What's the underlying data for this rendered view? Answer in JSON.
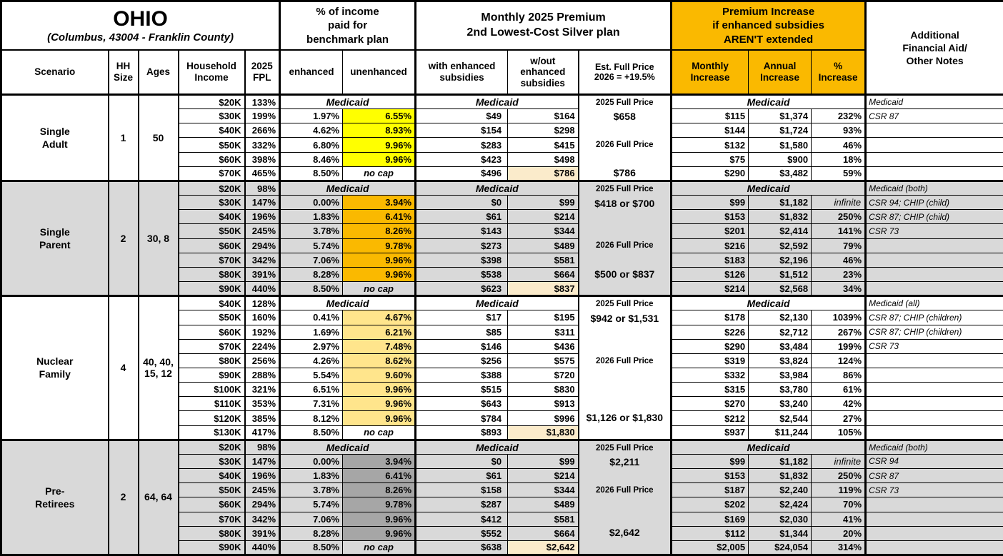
{
  "labels": {
    "ohio": "OHIO",
    "location": "(Columbus, 43004 - Franklin County)",
    "income_pct_header": "% of income\npaid for\nbenchmark plan",
    "premium_header": "Monthly 2025 Premium\n2nd Lowest-Cost Silver plan",
    "increase_header": "Premium Increase\nif enhanced subsidies\nAREN'T extended",
    "notes_header": "Additional\nFinancial Aid/\nOther Notes",
    "col_scenario": "Scenario",
    "col_hh": "HH\nSize",
    "col_ages": "Ages",
    "col_income": "Household\nIncome",
    "col_fpl": "2025\nFPL",
    "col_enh": "enhanced",
    "col_unenh": "unenhanced",
    "col_with": "with enhanced\nsubsidies",
    "col_wout": "w/out\nenhanced\nsubsidies",
    "col_est": "Est. Full Price\n2026 = +19.5%",
    "col_monthly": "Monthly\nIncrease",
    "col_annual": "Annual\nIncrease",
    "col_pct": "%\nIncrease",
    "medicaid": "Medicaid",
    "no_cap": "no cap"
  },
  "colors": {
    "header_gold": "#FAB900",
    "cell_yellow": "#FFFF00",
    "cell_gold": "#FAB900",
    "cell_light_gold": "#FFE58C",
    "cell_dark_gray": "#A6A6A6",
    "section_gray": "#D9D9D9",
    "highlight_cream": "#FBEBCB"
  },
  "sections": [
    {
      "label": "Single\nAdult",
      "hh": "1",
      "ages": "50",
      "shade": "white",
      "fill": "cell_yellow",
      "rows": [
        {
          "income": "$20K",
          "fpl": "133%",
          "type": "medicaid"
        },
        {
          "income": "$30K",
          "fpl": "199%",
          "enh": "1.97%",
          "unenh": "6.55%",
          "with_s": "$49",
          "wout": "$164",
          "monthly": "$115",
          "annual": "$1,374",
          "pct": "232%"
        },
        {
          "income": "$40K",
          "fpl": "266%",
          "enh": "4.62%",
          "unenh": "8.93%",
          "with_s": "$154",
          "wout": "$298",
          "monthly": "$144",
          "annual": "$1,724",
          "pct": "93%"
        },
        {
          "income": "$50K",
          "fpl": "332%",
          "enh": "6.80%",
          "unenh": "9.96%",
          "with_s": "$283",
          "wout": "$415",
          "monthly": "$132",
          "annual": "$1,580",
          "pct": "46%"
        },
        {
          "income": "$60K",
          "fpl": "398%",
          "enh": "8.46%",
          "unenh": "9.96%",
          "with_s": "$423",
          "wout": "$498",
          "monthly": "$75",
          "annual": "$900",
          "pct": "18%"
        },
        {
          "income": "$70K",
          "fpl": "465%",
          "enh": "8.50%",
          "unenh": "no cap",
          "nocap": true,
          "with_s": "$496",
          "wout": "$786",
          "hl": true,
          "monthly": "$290",
          "annual": "$3,482",
          "pct": "59%"
        }
      ],
      "est": [
        {
          "t": "2025 Full Price",
          "k": "label"
        },
        {
          "t": "$658",
          "k": "money"
        },
        {
          "t": ""
        },
        {
          "t": "2026 Full Price",
          "k": "label"
        },
        {
          "t": ""
        },
        {
          "t": "$786",
          "k": "money"
        }
      ],
      "notes": [
        "Medicaid",
        "CSR 87",
        "",
        "",
        "",
        ""
      ]
    },
    {
      "label": "Single\nParent",
      "hh": "2",
      "ages": "30, 8",
      "shade": "gray",
      "fill": "cell_gold",
      "rows": [
        {
          "income": "$20K",
          "fpl": "98%",
          "type": "medicaid"
        },
        {
          "income": "$30K",
          "fpl": "147%",
          "enh": "0.00%",
          "unenh": "3.94%",
          "with_s": "$0",
          "wout": "$99",
          "monthly": "$99",
          "annual": "$1,182",
          "pct": "infinite",
          "pct_italic": true
        },
        {
          "income": "$40K",
          "fpl": "196%",
          "enh": "1.83%",
          "unenh": "6.41%",
          "with_s": "$61",
          "wout": "$214",
          "monthly": "$153",
          "annual": "$1,832",
          "pct": "250%"
        },
        {
          "income": "$50K",
          "fpl": "245%",
          "enh": "3.78%",
          "unenh": "8.26%",
          "with_s": "$143",
          "wout": "$344",
          "monthly": "$201",
          "annual": "$2,414",
          "pct": "141%"
        },
        {
          "income": "$60K",
          "fpl": "294%",
          "enh": "5.74%",
          "unenh": "9.78%",
          "with_s": "$273",
          "wout": "$489",
          "monthly": "$216",
          "annual": "$2,592",
          "pct": "79%"
        },
        {
          "income": "$70K",
          "fpl": "342%",
          "enh": "7.06%",
          "unenh": "9.96%",
          "with_s": "$398",
          "wout": "$581",
          "monthly": "$183",
          "annual": "$2,196",
          "pct": "46%"
        },
        {
          "income": "$80K",
          "fpl": "391%",
          "enh": "8.28%",
          "unenh": "9.96%",
          "with_s": "$538",
          "wout": "$664",
          "monthly": "$126",
          "annual": "$1,512",
          "pct": "23%"
        },
        {
          "income": "$90K",
          "fpl": "440%",
          "enh": "8.50%",
          "unenh": "no cap",
          "nocap": true,
          "with_s": "$623",
          "wout": "$837",
          "hl": true,
          "monthly": "$214",
          "annual": "$2,568",
          "pct": "34%"
        }
      ],
      "est": [
        {
          "t": "2025 Full Price",
          "k": "label"
        },
        {
          "t": "$418 or $700",
          "k": "money"
        },
        {
          "t": ""
        },
        {
          "t": ""
        },
        {
          "t": "2026 Full Price",
          "k": "label"
        },
        {
          "t": ""
        },
        {
          "t": "$500 or $837",
          "k": "money"
        },
        {
          "t": ""
        }
      ],
      "notes": [
        "Medicaid (both)",
        "CSR 94; CHIP (child)",
        "CSR 87; CHIP (child)",
        "CSR 73",
        "",
        "",
        "",
        ""
      ]
    },
    {
      "label": "Nuclear\nFamily",
      "hh": "4",
      "ages": "40, 40,\n15, 12",
      "shade": "white",
      "fill": "cell_light_gold",
      "rows": [
        {
          "income": "$40K",
          "fpl": "128%",
          "type": "medicaid"
        },
        {
          "income": "$50K",
          "fpl": "160%",
          "enh": "0.41%",
          "unenh": "4.67%",
          "with_s": "$17",
          "wout": "$195",
          "monthly": "$178",
          "annual": "$2,130",
          "pct": "1039%"
        },
        {
          "income": "$60K",
          "fpl": "192%",
          "enh": "1.69%",
          "unenh": "6.21%",
          "with_s": "$85",
          "wout": "$311",
          "monthly": "$226",
          "annual": "$2,712",
          "pct": "267%"
        },
        {
          "income": "$70K",
          "fpl": "224%",
          "enh": "2.97%",
          "unenh": "7.48%",
          "with_s": "$146",
          "wout": "$436",
          "monthly": "$290",
          "annual": "$3,484",
          "pct": "199%"
        },
        {
          "income": "$80K",
          "fpl": "256%",
          "enh": "4.26%",
          "unenh": "8.62%",
          "with_s": "$256",
          "wout": "$575",
          "monthly": "$319",
          "annual": "$3,824",
          "pct": "124%"
        },
        {
          "income": "$90K",
          "fpl": "288%",
          "enh": "5.54%",
          "unenh": "9.60%",
          "with_s": "$388",
          "wout": "$720",
          "monthly": "$332",
          "annual": "$3,984",
          "pct": "86%"
        },
        {
          "income": "$100K",
          "fpl": "321%",
          "enh": "6.51%",
          "unenh": "9.96%",
          "with_s": "$515",
          "wout": "$830",
          "monthly": "$315",
          "annual": "$3,780",
          "pct": "61%"
        },
        {
          "income": "$110K",
          "fpl": "353%",
          "enh": "7.31%",
          "unenh": "9.96%",
          "with_s": "$643",
          "wout": "$913",
          "monthly": "$270",
          "annual": "$3,240",
          "pct": "42%"
        },
        {
          "income": "$120K",
          "fpl": "385%",
          "enh": "8.12%",
          "unenh": "9.96%",
          "with_s": "$784",
          "wout": "$996",
          "monthly": "$212",
          "annual": "$2,544",
          "pct": "27%"
        },
        {
          "income": "$130K",
          "fpl": "417%",
          "enh": "8.50%",
          "unenh": "no cap",
          "nocap": true,
          "with_s": "$893",
          "wout": "$1,830",
          "hl": true,
          "monthly": "$937",
          "annual": "$11,244",
          "pct": "105%"
        }
      ],
      "est": [
        {
          "t": "2025 Full Price",
          "k": "label"
        },
        {
          "t": "$942 or $1,531",
          "k": "money"
        },
        {
          "t": ""
        },
        {
          "t": ""
        },
        {
          "t": "2026 Full Price",
          "k": "label"
        },
        {
          "t": ""
        },
        {
          "t": ""
        },
        {
          "t": ""
        },
        {
          "t": "$1,126 or $1,830",
          "k": "money"
        },
        {
          "t": ""
        }
      ],
      "notes": [
        "Medicaid (all)",
        "CSR 87; CHIP (children)",
        "CSR 87; CHIP (children)",
        "CSR 73",
        "",
        "",
        "",
        "",
        "",
        ""
      ]
    },
    {
      "label": "Pre-\nRetirees",
      "hh": "2",
      "ages": "64, 64",
      "shade": "gray",
      "fill": "cell_dark_gray",
      "rows": [
        {
          "income": "$20K",
          "fpl": "98%",
          "type": "medicaid"
        },
        {
          "income": "$30K",
          "fpl": "147%",
          "enh": "0.00%",
          "unenh": "3.94%",
          "with_s": "$0",
          "wout": "$99",
          "monthly": "$99",
          "annual": "$1,182",
          "pct": "infinite",
          "pct_italic": true
        },
        {
          "income": "$40K",
          "fpl": "196%",
          "enh": "1.83%",
          "unenh": "6.41%",
          "with_s": "$61",
          "wout": "$214",
          "monthly": "$153",
          "annual": "$1,832",
          "pct": "250%"
        },
        {
          "income": "$50K",
          "fpl": "245%",
          "enh": "3.78%",
          "unenh": "8.26%",
          "with_s": "$158",
          "wout": "$344",
          "monthly": "$187",
          "annual": "$2,240",
          "pct": "119%"
        },
        {
          "income": "$60K",
          "fpl": "294%",
          "enh": "5.74%",
          "unenh": "9.78%",
          "with_s": "$287",
          "wout": "$489",
          "monthly": "$202",
          "annual": "$2,424",
          "pct": "70%"
        },
        {
          "income": "$70K",
          "fpl": "342%",
          "enh": "7.06%",
          "unenh": "9.96%",
          "with_s": "$412",
          "wout": "$581",
          "monthly": "$169",
          "annual": "$2,030",
          "pct": "41%"
        },
        {
          "income": "$80K",
          "fpl": "391%",
          "enh": "8.28%",
          "unenh": "9.96%",
          "with_s": "$552",
          "wout": "$664",
          "monthly": "$112",
          "annual": "$1,344",
          "pct": "20%"
        },
        {
          "income": "$90K",
          "fpl": "440%",
          "enh": "8.50%",
          "unenh": "no cap",
          "nocap": true,
          "with_s": "$638",
          "wout": "$2,642",
          "hl": true,
          "monthly": "$2,005",
          "annual": "$24,054",
          "pct": "314%"
        }
      ],
      "est": [
        {
          "t": "2025 Full Price",
          "k": "label"
        },
        {
          "t": "$2,211",
          "k": "money"
        },
        {
          "t": ""
        },
        {
          "t": "2026 Full Price",
          "k": "label"
        },
        {
          "t": ""
        },
        {
          "t": ""
        },
        {
          "t": "$2,642",
          "k": "money"
        },
        {
          "t": ""
        }
      ],
      "notes": [
        "Medicaid (both)",
        "CSR 94",
        "CSR 87",
        "CSR 73",
        "",
        "",
        "",
        ""
      ]
    }
  ]
}
